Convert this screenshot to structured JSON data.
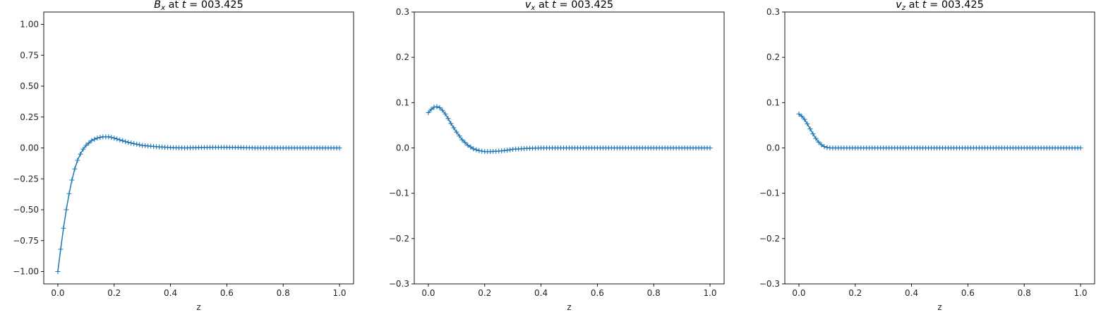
{
  "figure": {
    "background": "#ffffff",
    "series_color": "#1f77b4"
  },
  "chart_data": [
    {
      "type": "line",
      "marker": "+",
      "title": {
        "main": "B",
        "sub": "x",
        "rest": " at ",
        "tvar": "t",
        "tval": " = 003.425"
      },
      "xlabel": "z",
      "ylabel": "",
      "xlim": [
        -0.05,
        1.05
      ],
      "ylim": [
        -1.1,
        1.1
      ],
      "xticks": [
        0.0,
        0.2,
        0.4,
        0.6,
        0.8,
        1.0
      ],
      "xtick_labels": [
        "0.0",
        "0.2",
        "0.4",
        "0.6",
        "0.8",
        "1.0"
      ],
      "yticks": [
        -1.0,
        -0.75,
        -0.5,
        -0.25,
        0.0,
        0.25,
        0.5,
        0.75,
        1.0
      ],
      "ytick_labels": [
        "−1.00",
        "−0.75",
        "−0.50",
        "−0.25",
        "0.00",
        "0.25",
        "0.50",
        "0.75",
        "1.00"
      ],
      "grid": false,
      "series": [
        {
          "x": [
            0.0,
            0.01,
            0.02,
            0.03,
            0.04,
            0.05,
            0.06,
            0.07,
            0.08,
            0.09,
            0.1,
            0.12,
            0.14,
            0.16,
            0.18,
            0.2,
            0.22,
            0.25,
            0.28,
            0.3,
            0.35,
            0.4,
            0.45,
            0.5,
            0.55,
            0.6,
            0.65,
            0.7,
            0.75,
            0.8,
            0.85,
            0.9,
            0.95,
            1.0
          ],
          "y": [
            -1.0,
            -0.82,
            -0.65,
            -0.5,
            -0.37,
            -0.26,
            -0.17,
            -0.1,
            -0.05,
            -0.01,
            0.02,
            0.06,
            0.08,
            0.09,
            0.09,
            0.08,
            0.065,
            0.045,
            0.03,
            0.02,
            0.01,
            0.003,
            0.0,
            0.003,
            0.005,
            0.005,
            0.003,
            0.0,
            0.0,
            0.0,
            0.0,
            0.0,
            0.0,
            0.0
          ]
        }
      ]
    },
    {
      "type": "line",
      "marker": "+",
      "title": {
        "main": "v",
        "sub": "x",
        "rest": " at ",
        "tvar": "t",
        "tval": " = 003.425"
      },
      "xlabel": "z",
      "ylabel": "",
      "xlim": [
        -0.05,
        1.05
      ],
      "ylim": [
        -0.3,
        0.3
      ],
      "xticks": [
        0.0,
        0.2,
        0.4,
        0.6,
        0.8,
        1.0
      ],
      "xtick_labels": [
        "0.0",
        "0.2",
        "0.4",
        "0.6",
        "0.8",
        "1.0"
      ],
      "yticks": [
        -0.3,
        -0.2,
        -0.1,
        0.0,
        0.1,
        0.2,
        0.3
      ],
      "ytick_labels": [
        "−0.3",
        "−0.2",
        "−0.1",
        "0.0",
        "0.1",
        "0.2",
        "0.3"
      ],
      "grid": false,
      "series": [
        {
          "x": [
            0.0,
            0.01,
            0.02,
            0.03,
            0.04,
            0.05,
            0.06,
            0.07,
            0.08,
            0.1,
            0.12,
            0.14,
            0.16,
            0.18,
            0.2,
            0.22,
            0.25,
            0.28,
            0.3,
            0.35,
            0.4,
            0.5,
            0.6,
            0.7,
            0.8,
            0.9,
            1.0
          ],
          "y": [
            0.078,
            0.085,
            0.09,
            0.091,
            0.089,
            0.083,
            0.075,
            0.065,
            0.054,
            0.035,
            0.018,
            0.006,
            -0.002,
            -0.006,
            -0.008,
            -0.008,
            -0.007,
            -0.005,
            -0.003,
            -0.001,
            0.0,
            0.0,
            0.0,
            0.0,
            0.0,
            0.0,
            0.0
          ]
        }
      ]
    },
    {
      "type": "line",
      "marker": "+",
      "title": {
        "main": "v",
        "sub": "z",
        "rest": " at ",
        "tvar": "t",
        "tval": " = 003.425"
      },
      "xlabel": "z",
      "ylabel": "",
      "xlim": [
        -0.05,
        1.05
      ],
      "ylim": [
        -0.3,
        0.3
      ],
      "xticks": [
        0.0,
        0.2,
        0.4,
        0.6,
        0.8,
        1.0
      ],
      "xtick_labels": [
        "0.0",
        "0.2",
        "0.4",
        "0.6",
        "0.8",
        "1.0"
      ],
      "yticks": [
        -0.3,
        -0.2,
        -0.1,
        0.0,
        0.1,
        0.2,
        0.3
      ],
      "ytick_labels": [
        "−0.3",
        "−0.2",
        "−0.1",
        "0.0",
        "0.1",
        "0.2",
        "0.3"
      ],
      "grid": false,
      "series": [
        {
          "x": [
            0.0,
            0.01,
            0.02,
            0.03,
            0.04,
            0.05,
            0.06,
            0.07,
            0.08,
            0.09,
            0.1,
            0.11,
            0.12,
            0.13,
            0.15,
            0.2,
            0.3,
            0.4,
            0.5,
            0.6,
            0.7,
            0.8,
            0.9,
            1.0
          ],
          "y": [
            0.075,
            0.07,
            0.063,
            0.053,
            0.042,
            0.031,
            0.021,
            0.013,
            0.007,
            0.003,
            0.001,
            0.0,
            0.0,
            0.0,
            0.0,
            0.0,
            0.0,
            0.0,
            0.0,
            0.0,
            0.0,
            0.0,
            0.0,
            0.0
          ]
        }
      ]
    }
  ]
}
